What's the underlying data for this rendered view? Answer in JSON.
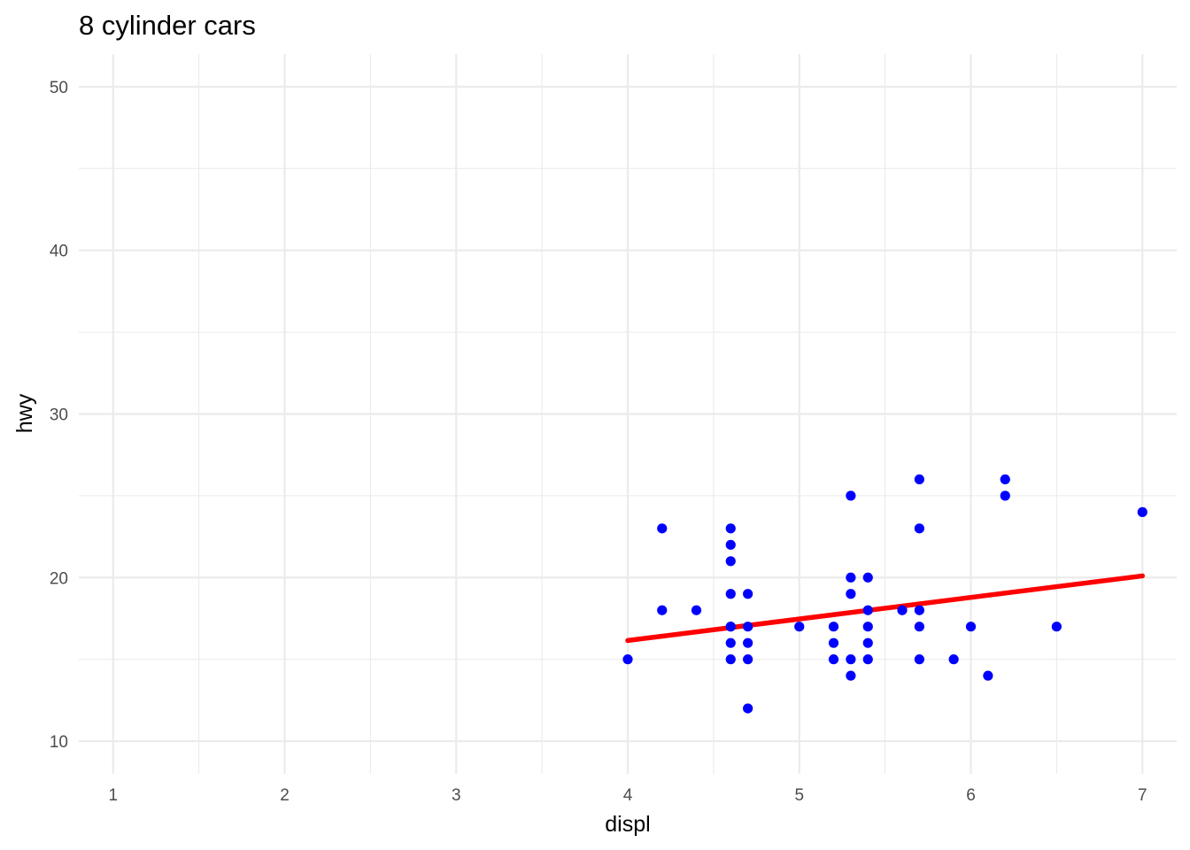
{
  "chart_data": {
    "type": "scatter",
    "title": "8 cylinder cars",
    "xlabel": "displ",
    "ylabel": "hwy",
    "xlim": [
      0.8,
      7.2
    ],
    "ylim": [
      8,
      52
    ],
    "x_ticks": [
      1,
      2,
      3,
      4,
      5,
      6,
      7
    ],
    "y_ticks": [
      10,
      20,
      30,
      40,
      50
    ],
    "x_minor_ticks": [
      1.5,
      2.5,
      3.5,
      4.5,
      5.5,
      6.5
    ],
    "y_minor_ticks": [
      15,
      25,
      35,
      45
    ],
    "grid": true,
    "point_color": "#0000ff",
    "line_color": "#ff0000",
    "x": [
      4.0,
      4.2,
      4.2,
      4.4,
      4.6,
      4.6,
      4.6,
      4.6,
      4.6,
      4.6,
      4.6,
      4.6,
      4.7,
      4.7,
      4.7,
      4.7,
      4.7,
      5.0,
      5.2,
      5.2,
      5.2,
      5.3,
      5.3,
      5.3,
      5.3,
      5.3,
      5.4,
      5.4,
      5.4,
      5.4,
      5.4,
      5.6,
      5.7,
      5.7,
      5.7,
      5.7,
      5.7,
      5.9,
      6.0,
      6.1,
      6.2,
      6.2,
      6.5,
      7.0
    ],
    "y": [
      15,
      23,
      18,
      18,
      23,
      22,
      21,
      19,
      17,
      16,
      15,
      17,
      19,
      17,
      16,
      15,
      12,
      17,
      17,
      16,
      15,
      25,
      20,
      19,
      15,
      14,
      20,
      18,
      17,
      16,
      15,
      18,
      26,
      23,
      18,
      17,
      15,
      15,
      17,
      14,
      26,
      25,
      17,
      24
    ],
    "trend_line": {
      "x": [
        4.0,
        7.0
      ],
      "y": [
        16.15,
        20.1
      ]
    }
  }
}
